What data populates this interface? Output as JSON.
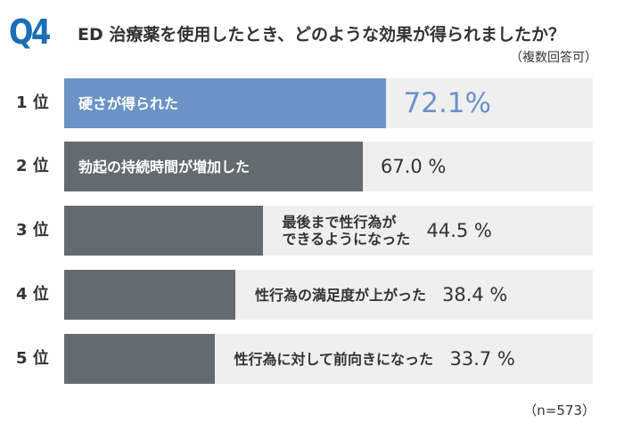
{
  "header": {
    "q_label": "Q4",
    "title": "ED 治療薬を使用したとき、どのような効果が得られましたか？",
    "note": "（複数回答可）"
  },
  "footer": {
    "sample": "（n=573）"
  },
  "colors": {
    "highlight": "#6b93c5",
    "bar": "#636b70",
    "track": "#efefef",
    "accent": "#1a6fb5"
  },
  "chart_data": {
    "type": "bar",
    "orientation": "horizontal",
    "categories": [
      "硬さが得られた",
      "勃起の持続時間が増加した",
      "最後まで性行為が\nできるようになった",
      "性行為の満足度が上がった",
      "性行為に対して前向きになった"
    ],
    "ranks": [
      "1 位",
      "2 位",
      "3 位",
      "4 位",
      "5 位"
    ],
    "values": [
      72.1,
      67.0,
      44.5,
      38.4,
      33.7
    ],
    "value_labels": [
      "72.1%",
      "67.0 %",
      "44.5 %",
      "38.4 %",
      "33.7 %"
    ],
    "unit": "%",
    "grid": false
  }
}
